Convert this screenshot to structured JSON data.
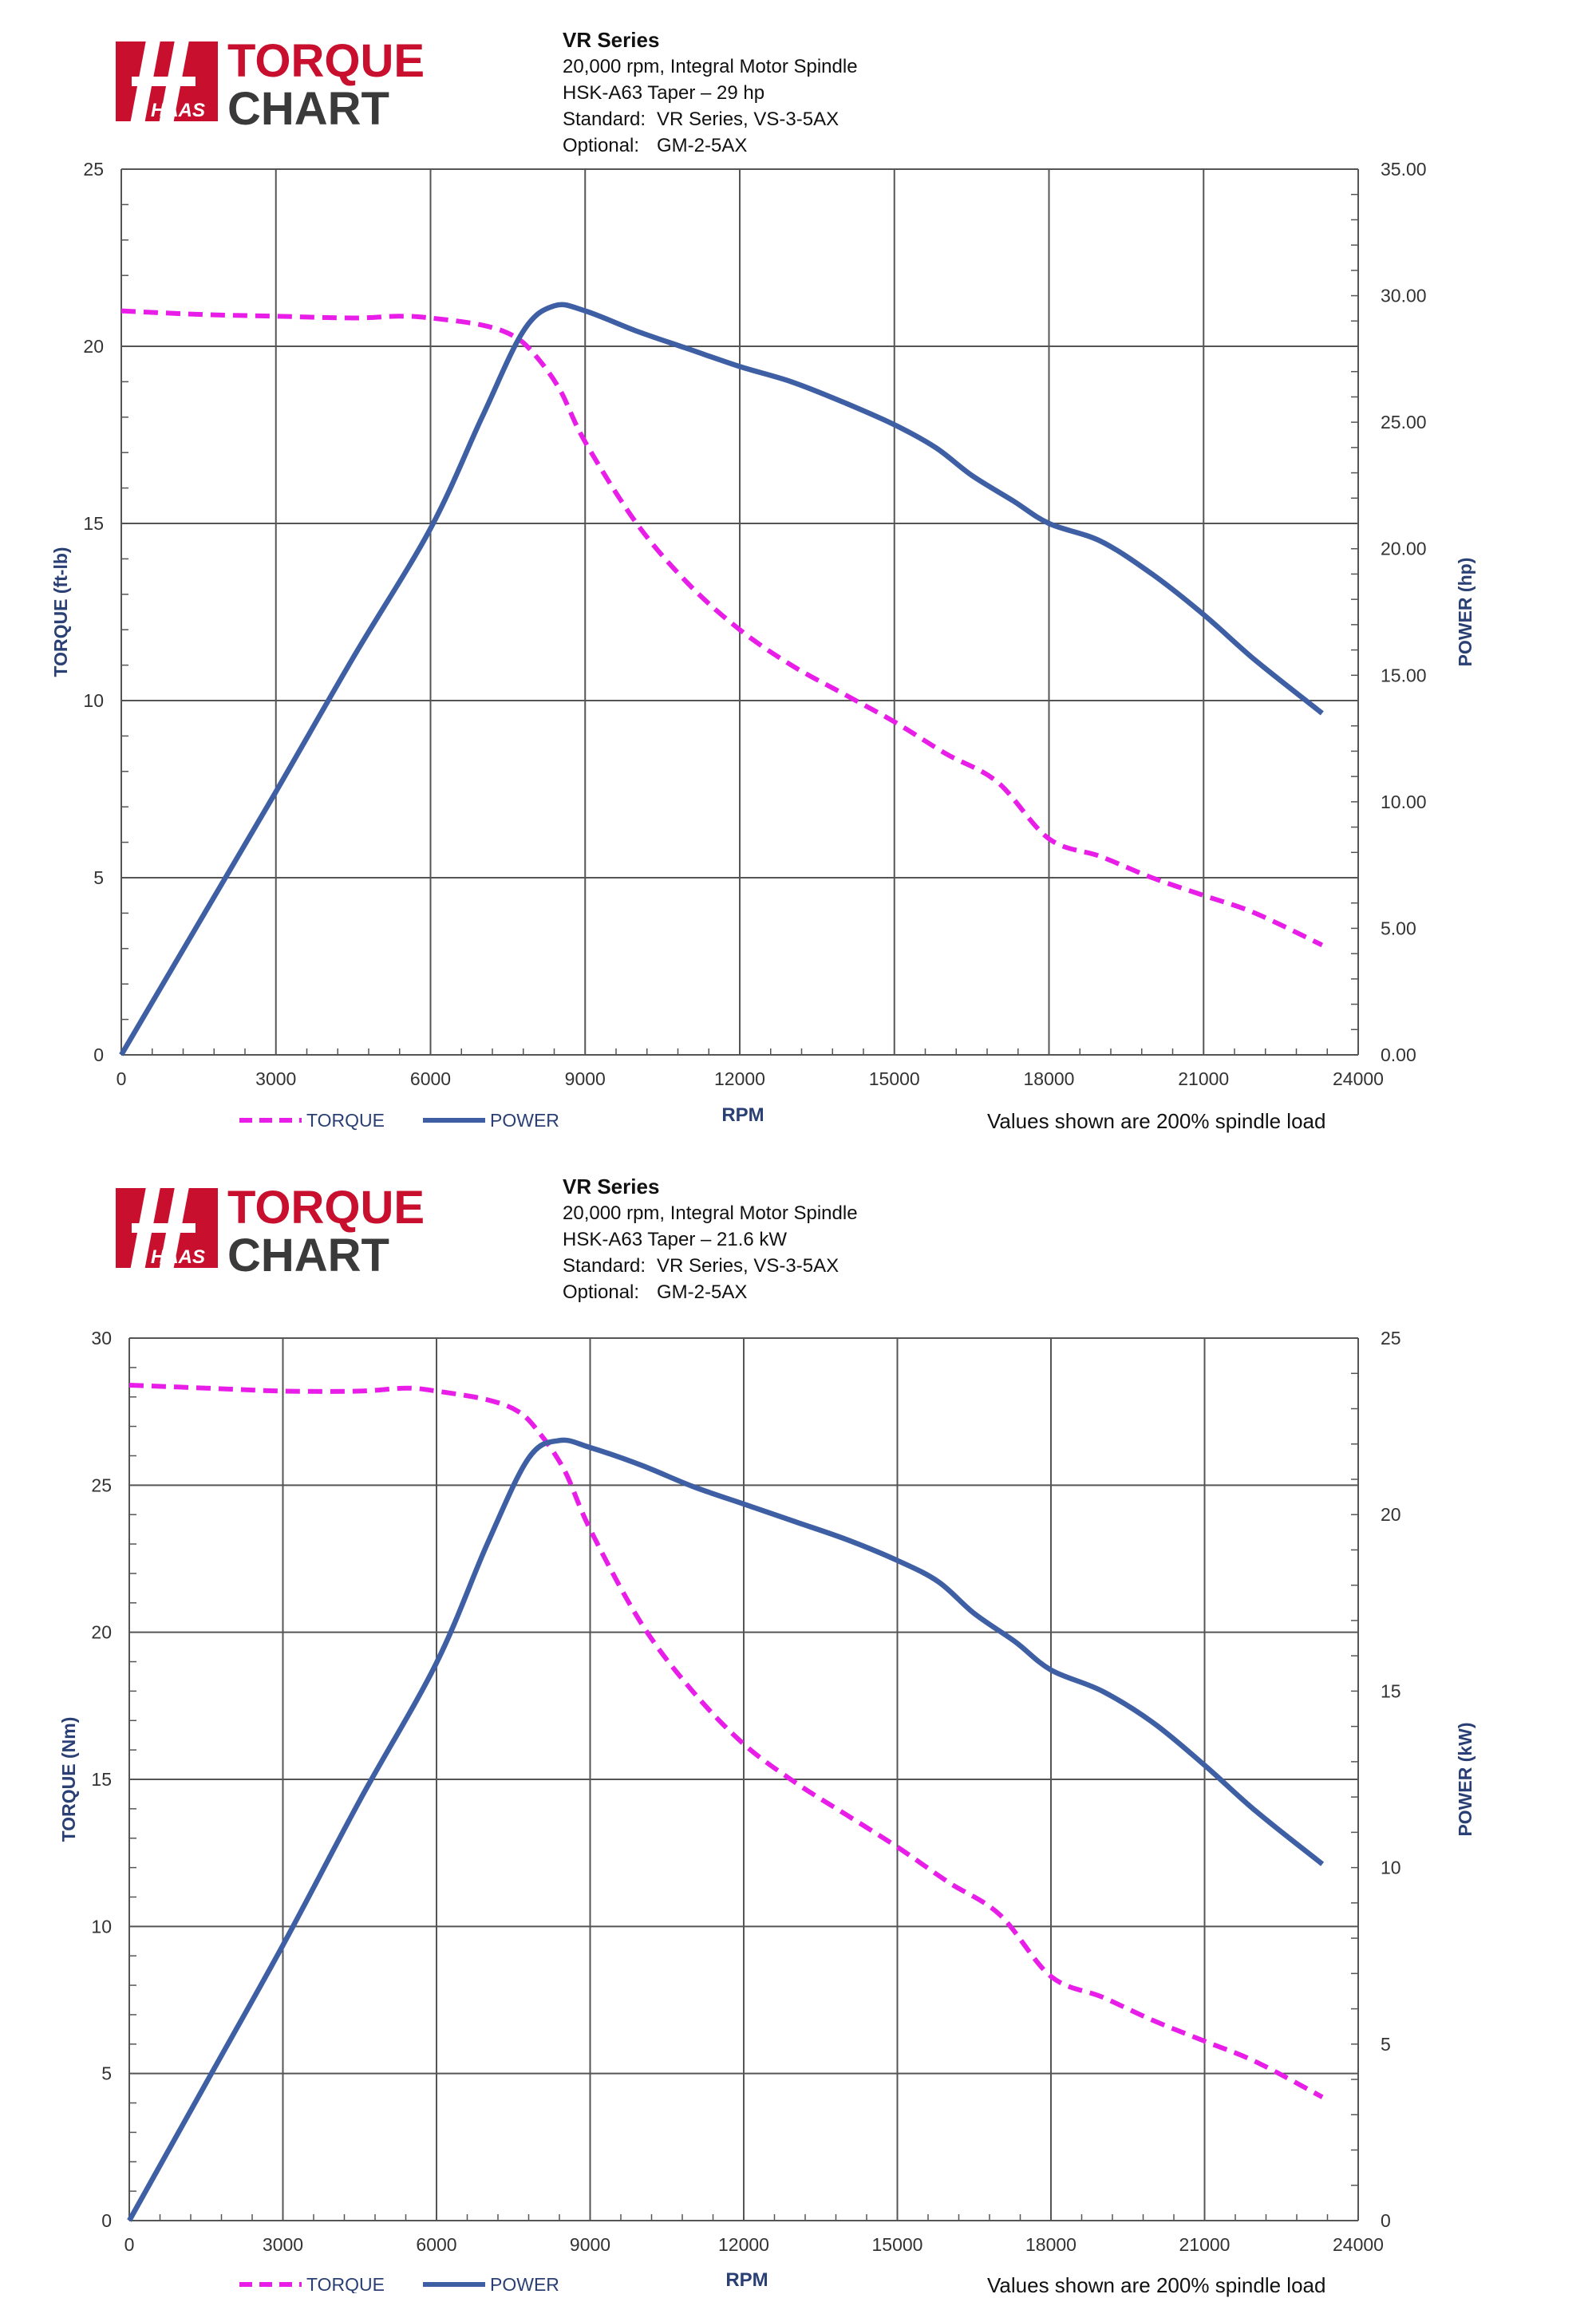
{
  "brand": {
    "logo_mark": "HAAS",
    "logo_line1": "TORQUE",
    "logo_line2": "CHART",
    "red": "#c8102e",
    "dark": "#3a3a3a"
  },
  "colors": {
    "torque": "#e81ee8",
    "power": "#3e5fa4",
    "grid": "#555555",
    "axis_text": "#333333",
    "axis_label": "#2a3f73"
  },
  "note": "Values shown are 200% spindle load",
  "charts": [
    {
      "header": {
        "title": "VR Series",
        "line1": "20,000 rpm, Integral Motor Spindle",
        "line2": "HSK-A63 Taper – 29 hp",
        "standard_label": "Standard:",
        "standard_value": "VR Series, VS-3-5AX",
        "optional_label": "Optional:",
        "optional_value": "GM-2-5AX"
      },
      "left_ticks": [
        "0",
        "5",
        "10",
        "15",
        "20",
        "25"
      ],
      "right_ticks": [
        "0.00",
        "5.00",
        "10.00",
        "15.00",
        "20.00",
        "25.00",
        "30.00",
        "35.00"
      ],
      "x_ticks": [
        "0",
        "3000",
        "6000",
        "9000",
        "12000",
        "15000",
        "18000",
        "21000",
        "24000"
      ]
    },
    {
      "header": {
        "title": "VR Series",
        "line1": "20,000 rpm, Integral Motor Spindle",
        "line2": "HSK-A63 Taper – 21.6 kW",
        "standard_label": "Standard:",
        "standard_value": "VR Series, VS-3-5AX",
        "optional_label": "Optional:",
        "optional_value": "GM-2-5AX"
      },
      "left_ticks": [
        "0",
        "5",
        "10",
        "15",
        "20",
        "25",
        "30"
      ],
      "right_ticks": [
        "0",
        "5",
        "10",
        "15",
        "20",
        "25"
      ],
      "x_ticks": [
        "0",
        "3000",
        "6000",
        "9000",
        "12000",
        "15000",
        "18000",
        "21000",
        "24000"
      ]
    }
  ],
  "chart_data": [
    {
      "type": "line",
      "xlabel": "RPM",
      "ylabel": "TORQUE (ft-lb)",
      "y2label": "POWER (hp)",
      "xlim": [
        0,
        24000
      ],
      "ylim": [
        0,
        25
      ],
      "y2lim": [
        0,
        35
      ],
      "grid": true,
      "legend_position": "bottom-left",
      "series": [
        {
          "name": "TORQUE",
          "axis": "left",
          "style": "dashed",
          "x": [
            0,
            1500,
            3000,
            4500,
            5400,
            6000,
            7000,
            7600,
            8000,
            8500,
            9000,
            10000,
            11000,
            12000,
            13000,
            14000,
            15000,
            16000,
            17000,
            18000,
            19000,
            20000,
            21000,
            22000,
            23300
          ],
          "y": [
            21.0,
            20.9,
            20.85,
            20.8,
            20.85,
            20.8,
            20.6,
            20.3,
            19.8,
            18.8,
            17.3,
            15.0,
            13.3,
            12.0,
            11.0,
            10.2,
            9.4,
            8.5,
            7.7,
            6.1,
            5.6,
            5.0,
            4.5,
            4.0,
            3.1
          ]
        },
        {
          "name": "POWER",
          "axis": "right",
          "style": "solid",
          "x": [
            0,
            1500,
            3000,
            4500,
            6000,
            7000,
            7800,
            8400,
            9000,
            10000,
            11000,
            12000,
            13000,
            14000,
            15000,
            15800,
            16500,
            17300,
            18000,
            19000,
            20000,
            21000,
            22000,
            23300
          ],
          "y": [
            0,
            5.2,
            10.4,
            15.7,
            20.8,
            25.2,
            28.6,
            29.6,
            29.4,
            28.6,
            27.9,
            27.2,
            26.6,
            25.8,
            24.9,
            24.0,
            22.9,
            21.9,
            21.0,
            20.3,
            19.0,
            17.4,
            15.6,
            13.5
          ]
        }
      ]
    },
    {
      "type": "line",
      "xlabel": "RPM",
      "ylabel": "TORQUE (Nm)",
      "y2label": "POWER (kW)",
      "xlim": [
        0,
        24000
      ],
      "ylim": [
        0,
        30
      ],
      "y2lim": [
        0,
        25
      ],
      "grid": true,
      "legend_position": "bottom-left",
      "series": [
        {
          "name": "TORQUE",
          "axis": "left",
          "style": "dashed",
          "x": [
            0,
            1500,
            3000,
            4500,
            5400,
            6000,
            7000,
            7600,
            8000,
            8500,
            9000,
            10000,
            11000,
            12000,
            13000,
            14000,
            15000,
            16000,
            17000,
            18000,
            19000,
            20000,
            21000,
            22000,
            23300
          ],
          "y": [
            28.4,
            28.3,
            28.2,
            28.2,
            28.3,
            28.2,
            27.9,
            27.5,
            26.8,
            25.5,
            23.5,
            20.3,
            18.0,
            16.2,
            14.9,
            13.8,
            12.7,
            11.5,
            10.4,
            8.3,
            7.6,
            6.8,
            6.1,
            5.4,
            4.2
          ]
        },
        {
          "name": "POWER",
          "axis": "right",
          "style": "solid",
          "x": [
            0,
            1500,
            3000,
            4500,
            6000,
            7000,
            7800,
            8400,
            9000,
            10000,
            11000,
            12000,
            13000,
            14000,
            15000,
            15800,
            16500,
            17300,
            18000,
            19000,
            20000,
            21000,
            22000,
            23300
          ],
          "y": [
            0,
            3.9,
            7.8,
            11.9,
            15.8,
            19.2,
            21.6,
            22.1,
            21.9,
            21.4,
            20.8,
            20.3,
            19.8,
            19.3,
            18.7,
            18.1,
            17.2,
            16.4,
            15.6,
            15.0,
            14.1,
            12.9,
            11.6,
            10.1
          ]
        }
      ]
    }
  ]
}
